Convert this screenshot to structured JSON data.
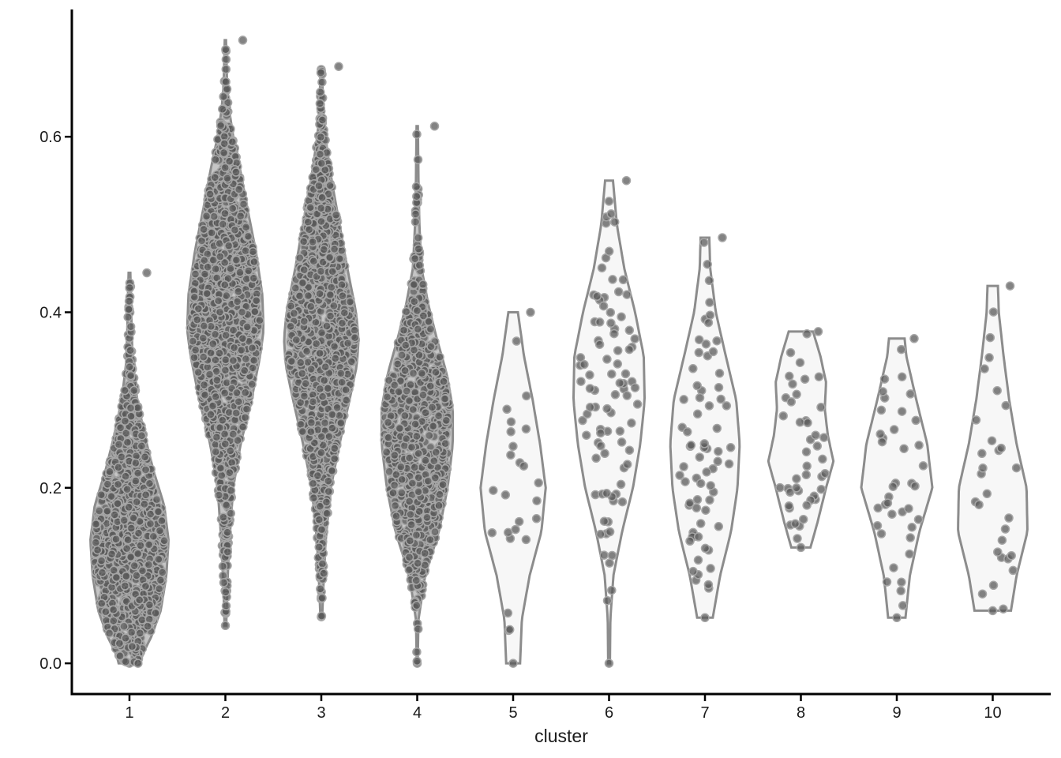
{
  "chart_data": {
    "type": "violin",
    "title": "",
    "xlabel": "cluster",
    "ylabel": "",
    "ylim": [
      -0.035,
      0.745
    ],
    "yticks": [
      0.0,
      0.2,
      0.4,
      0.6
    ],
    "ytick_labels": [
      "0.0",
      "0.2",
      "0.4",
      "0.6"
    ],
    "grid": false,
    "legend": "none",
    "categories": [
      "1",
      "2",
      "3",
      "4",
      "5",
      "6",
      "7",
      "8",
      "9",
      "10"
    ],
    "colors": {
      "violin_stroke": "#8c8c8c",
      "violin_fill_sparse": "#f7f7f7",
      "point_fill": "#595959",
      "point_stroke": "#a6a6a6",
      "axis": "#000000"
    },
    "series": [
      {
        "cluster": "1",
        "n_points": 1200,
        "min": 0.0,
        "max": 0.445,
        "profile": [
          [
            0.0,
            0.25
          ],
          [
            0.01,
            0.3
          ],
          [
            0.03,
            0.5
          ],
          [
            0.06,
            0.72
          ],
          [
            0.1,
            0.85
          ],
          [
            0.14,
            0.9
          ],
          [
            0.18,
            0.8
          ],
          [
            0.22,
            0.55
          ],
          [
            0.26,
            0.35
          ],
          [
            0.3,
            0.18
          ],
          [
            0.34,
            0.08
          ],
          [
            0.38,
            0.05
          ],
          [
            0.42,
            0.035
          ],
          [
            0.445,
            0.02
          ]
        ]
      },
      {
        "cluster": "2",
        "n_points": 1500,
        "min": 0.043,
        "max": 0.71,
        "profile": [
          [
            0.043,
            0.02
          ],
          [
            0.08,
            0.04
          ],
          [
            0.13,
            0.08
          ],
          [
            0.2,
            0.18
          ],
          [
            0.25,
            0.35
          ],
          [
            0.3,
            0.6
          ],
          [
            0.35,
            0.8
          ],
          [
            0.38,
            0.88
          ],
          [
            0.42,
            0.85
          ],
          [
            0.47,
            0.7
          ],
          [
            0.52,
            0.5
          ],
          [
            0.56,
            0.35
          ],
          [
            0.6,
            0.18
          ],
          [
            0.63,
            0.09
          ],
          [
            0.66,
            0.04
          ],
          [
            0.71,
            0.015
          ]
        ]
      },
      {
        "cluster": "3",
        "n_points": 1400,
        "min": 0.053,
        "max": 0.68,
        "profile": [
          [
            0.053,
            0.02
          ],
          [
            0.09,
            0.05
          ],
          [
            0.14,
            0.1
          ],
          [
            0.2,
            0.22
          ],
          [
            0.25,
            0.42
          ],
          [
            0.3,
            0.65
          ],
          [
            0.34,
            0.82
          ],
          [
            0.37,
            0.86
          ],
          [
            0.4,
            0.8
          ],
          [
            0.45,
            0.6
          ],
          [
            0.5,
            0.42
          ],
          [
            0.55,
            0.24
          ],
          [
            0.59,
            0.12
          ],
          [
            0.62,
            0.05
          ],
          [
            0.68,
            0.015
          ]
        ]
      },
      {
        "cluster": "4",
        "n_points": 900,
        "min": 0.0,
        "max": 0.612,
        "profile": [
          [
            0.0,
            0.01
          ],
          [
            0.05,
            0.03
          ],
          [
            0.1,
            0.18
          ],
          [
            0.15,
            0.5
          ],
          [
            0.2,
            0.7
          ],
          [
            0.25,
            0.82
          ],
          [
            0.29,
            0.82
          ],
          [
            0.33,
            0.68
          ],
          [
            0.37,
            0.45
          ],
          [
            0.41,
            0.25
          ],
          [
            0.45,
            0.1
          ],
          [
            0.5,
            0.05
          ],
          [
            0.55,
            0.03
          ],
          [
            0.612,
            0.015
          ]
        ]
      },
      {
        "cluster": "5",
        "n_points": 26,
        "min": 0.0,
        "max": 0.4,
        "profile": [
          [
            0.0,
            0.16
          ],
          [
            0.05,
            0.2
          ],
          [
            0.1,
            0.38
          ],
          [
            0.15,
            0.65
          ],
          [
            0.2,
            0.75
          ],
          [
            0.25,
            0.62
          ],
          [
            0.3,
            0.45
          ],
          [
            0.35,
            0.25
          ],
          [
            0.4,
            0.11
          ]
        ]
      },
      {
        "cluster": "6",
        "n_points": 90,
        "min": 0.0,
        "max": 0.55,
        "profile": [
          [
            0.0,
            0.02
          ],
          [
            0.05,
            0.03
          ],
          [
            0.1,
            0.1
          ],
          [
            0.15,
            0.3
          ],
          [
            0.2,
            0.55
          ],
          [
            0.25,
            0.72
          ],
          [
            0.3,
            0.82
          ],
          [
            0.35,
            0.8
          ],
          [
            0.4,
            0.6
          ],
          [
            0.45,
            0.35
          ],
          [
            0.5,
            0.18
          ],
          [
            0.55,
            0.09
          ]
        ]
      },
      {
        "cluster": "7",
        "n_points": 70,
        "min": 0.052,
        "max": 0.485,
        "profile": [
          [
            0.052,
            0.18
          ],
          [
            0.1,
            0.35
          ],
          [
            0.15,
            0.6
          ],
          [
            0.2,
            0.75
          ],
          [
            0.25,
            0.8
          ],
          [
            0.3,
            0.72
          ],
          [
            0.35,
            0.48
          ],
          [
            0.4,
            0.25
          ],
          [
            0.45,
            0.12
          ],
          [
            0.485,
            0.1
          ]
        ]
      },
      {
        "cluster": "8",
        "n_points": 45,
        "min": 0.132,
        "max": 0.378,
        "profile": [
          [
            0.132,
            0.22
          ],
          [
            0.16,
            0.38
          ],
          [
            0.2,
            0.58
          ],
          [
            0.23,
            0.75
          ],
          [
            0.26,
            0.62
          ],
          [
            0.29,
            0.55
          ],
          [
            0.32,
            0.58
          ],
          [
            0.35,
            0.45
          ],
          [
            0.378,
            0.28
          ]
        ]
      },
      {
        "cluster": "9",
        "n_points": 40,
        "min": 0.052,
        "max": 0.37,
        "profile": [
          [
            0.052,
            0.2
          ],
          [
            0.1,
            0.3
          ],
          [
            0.15,
            0.52
          ],
          [
            0.2,
            0.82
          ],
          [
            0.25,
            0.7
          ],
          [
            0.3,
            0.45
          ],
          [
            0.35,
            0.22
          ],
          [
            0.37,
            0.18
          ]
        ]
      },
      {
        "cluster": "10",
        "n_points": 30,
        "min": 0.06,
        "max": 0.43,
        "profile": [
          [
            0.06,
            0.42
          ],
          [
            0.1,
            0.55
          ],
          [
            0.15,
            0.8
          ],
          [
            0.2,
            0.78
          ],
          [
            0.25,
            0.55
          ],
          [
            0.3,
            0.38
          ],
          [
            0.35,
            0.25
          ],
          [
            0.4,
            0.14
          ],
          [
            0.43,
            0.12
          ]
        ]
      }
    ]
  }
}
